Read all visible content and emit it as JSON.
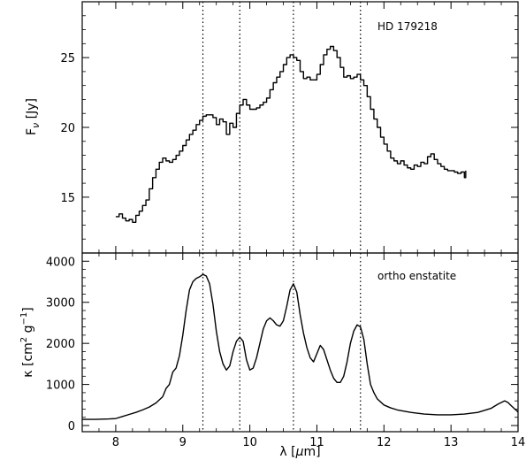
{
  "chart_data": [
    {
      "type": "line",
      "title": "",
      "annotation": "HD 179218",
      "xlabel": "",
      "ylabel": "F_ν [Jy]",
      "ylabel_parts": {
        "main": "F",
        "sub": "ν",
        "unit": " [Jy]"
      },
      "xlim": [
        7.5,
        14
      ],
      "ylim": [
        11,
        29
      ],
      "yticks": [
        15,
        20,
        25
      ],
      "xticks": [
        8,
        9,
        10,
        11,
        12,
        13,
        14
      ],
      "step_plot": true,
      "series": [
        {
          "points": [
            [
              8.0,
              13.6
            ],
            [
              8.05,
              13.8
            ],
            [
              8.1,
              13.5
            ],
            [
              8.15,
              13.3
            ],
            [
              8.2,
              13.4
            ],
            [
              8.25,
              13.2
            ],
            [
              8.3,
              13.7
            ],
            [
              8.35,
              14.0
            ],
            [
              8.4,
              14.4
            ],
            [
              8.45,
              14.8
            ],
            [
              8.5,
              15.6
            ],
            [
              8.55,
              16.4
            ],
            [
              8.6,
              17.0
            ],
            [
              8.65,
              17.5
            ],
            [
              8.7,
              17.8
            ],
            [
              8.75,
              17.6
            ],
            [
              8.8,
              17.5
            ],
            [
              8.85,
              17.7
            ],
            [
              8.9,
              18.0
            ],
            [
              8.95,
              18.3
            ],
            [
              9.0,
              18.7
            ],
            [
              9.05,
              19.1
            ],
            [
              9.1,
              19.5
            ],
            [
              9.15,
              19.8
            ],
            [
              9.2,
              20.2
            ],
            [
              9.25,
              20.5
            ],
            [
              9.3,
              20.8
            ],
            [
              9.35,
              20.9
            ],
            [
              9.4,
              20.9
            ],
            [
              9.45,
              20.7
            ],
            [
              9.5,
              20.2
            ],
            [
              9.55,
              20.6
            ],
            [
              9.6,
              20.4
            ],
            [
              9.65,
              19.5
            ],
            [
              9.7,
              20.3
            ],
            [
              9.75,
              20.0
            ],
            [
              9.8,
              21.0
            ],
            [
              9.85,
              21.6
            ],
            [
              9.9,
              22.0
            ],
            [
              9.95,
              21.6
            ],
            [
              10.0,
              21.3
            ],
            [
              10.05,
              21.3
            ],
            [
              10.1,
              21.4
            ],
            [
              10.15,
              21.6
            ],
            [
              10.2,
              21.8
            ],
            [
              10.25,
              22.1
            ],
            [
              10.3,
              22.7
            ],
            [
              10.35,
              23.2
            ],
            [
              10.4,
              23.6
            ],
            [
              10.45,
              24.0
            ],
            [
              10.5,
              24.5
            ],
            [
              10.55,
              25.0
            ],
            [
              10.6,
              25.2
            ],
            [
              10.65,
              25.0
            ],
            [
              10.7,
              24.8
            ],
            [
              10.75,
              24.0
            ],
            [
              10.8,
              23.5
            ],
            [
              10.85,
              23.6
            ],
            [
              10.9,
              23.4
            ],
            [
              10.95,
              23.4
            ],
            [
              11.0,
              23.8
            ],
            [
              11.05,
              24.5
            ],
            [
              11.1,
              25.2
            ],
            [
              11.15,
              25.6
            ],
            [
              11.2,
              25.8
            ],
            [
              11.25,
              25.5
            ],
            [
              11.3,
              25.0
            ],
            [
              11.35,
              24.3
            ],
            [
              11.4,
              23.6
            ],
            [
              11.45,
              23.7
            ],
            [
              11.5,
              23.5
            ],
            [
              11.55,
              23.6
            ],
            [
              11.6,
              23.8
            ],
            [
              11.65,
              23.4
            ],
            [
              11.7,
              23.0
            ],
            [
              11.75,
              22.2
            ],
            [
              11.8,
              21.3
            ],
            [
              11.85,
              20.6
            ],
            [
              11.9,
              20.0
            ],
            [
              11.95,
              19.3
            ],
            [
              12.0,
              18.8
            ],
            [
              12.05,
              18.3
            ],
            [
              12.1,
              17.8
            ],
            [
              12.15,
              17.6
            ],
            [
              12.2,
              17.4
            ],
            [
              12.25,
              17.6
            ],
            [
              12.3,
              17.3
            ],
            [
              12.35,
              17.1
            ],
            [
              12.4,
              17.0
            ],
            [
              12.45,
              17.3
            ],
            [
              12.5,
              17.2
            ],
            [
              12.55,
              17.5
            ],
            [
              12.6,
              17.4
            ],
            [
              12.65,
              17.9
            ],
            [
              12.7,
              18.1
            ],
            [
              12.75,
              17.7
            ],
            [
              12.8,
              17.4
            ],
            [
              12.85,
              17.2
            ],
            [
              12.9,
              17.0
            ],
            [
              12.95,
              16.9
            ],
            [
              13.0,
              16.9
            ],
            [
              13.05,
              16.8
            ],
            [
              13.1,
              16.7
            ],
            [
              13.15,
              16.8
            ],
            [
              13.2,
              16.4
            ],
            [
              13.22,
              16.9
            ]
          ]
        }
      ],
      "vlines": [
        9.3,
        9.85,
        10.65,
        11.65
      ]
    },
    {
      "type": "line",
      "title": "",
      "annotation": "ortho enstatite",
      "xlabel": "λ [μm]",
      "xlabel_parts": {
        "main": "λ [",
        "greek": "μ",
        "unit": "m]"
      },
      "ylabel": "κ [cm² g⁻¹]",
      "ylabel_parts": {
        "main": "κ [cm",
        "sup1": "2",
        "mid": " g",
        "sup2": "−1",
        "end": "]"
      },
      "xlim": [
        7.5,
        14
      ],
      "ylim": [
        -150,
        4200
      ],
      "yticks": [
        0,
        1000,
        2000,
        3000,
        4000
      ],
      "xticks": [
        8,
        9,
        10,
        11,
        12,
        13,
        14
      ],
      "xticklabels": [
        "8",
        "9",
        "10",
        "11",
        "12",
        "13",
        "14"
      ],
      "series": [
        {
          "points": [
            [
              7.5,
              150
            ],
            [
              7.7,
              150
            ],
            [
              7.9,
              160
            ],
            [
              8.0,
              170
            ],
            [
              8.1,
              220
            ],
            [
              8.2,
              270
            ],
            [
              8.3,
              320
            ],
            [
              8.4,
              380
            ],
            [
              8.5,
              450
            ],
            [
              8.6,
              550
            ],
            [
              8.7,
              700
            ],
            [
              8.75,
              900
            ],
            [
              8.8,
              1000
            ],
            [
              8.85,
              1300
            ],
            [
              8.9,
              1400
            ],
            [
              8.95,
              1700
            ],
            [
              9.0,
              2200
            ],
            [
              9.05,
              2800
            ],
            [
              9.1,
              3300
            ],
            [
              9.15,
              3500
            ],
            [
              9.2,
              3580
            ],
            [
              9.25,
              3620
            ],
            [
              9.3,
              3680
            ],
            [
              9.35,
              3640
            ],
            [
              9.4,
              3450
            ],
            [
              9.45,
              2950
            ],
            [
              9.5,
              2300
            ],
            [
              9.55,
              1800
            ],
            [
              9.6,
              1500
            ],
            [
              9.65,
              1350
            ],
            [
              9.7,
              1450
            ],
            [
              9.75,
              1800
            ],
            [
              9.8,
              2050
            ],
            [
              9.85,
              2150
            ],
            [
              9.9,
              2050
            ],
            [
              9.95,
              1600
            ],
            [
              10.0,
              1350
            ],
            [
              10.05,
              1400
            ],
            [
              10.1,
              1650
            ],
            [
              10.15,
              2000
            ],
            [
              10.2,
              2350
            ],
            [
              10.25,
              2550
            ],
            [
              10.3,
              2620
            ],
            [
              10.35,
              2550
            ],
            [
              10.4,
              2450
            ],
            [
              10.45,
              2420
            ],
            [
              10.5,
              2550
            ],
            [
              10.55,
              2900
            ],
            [
              10.6,
              3300
            ],
            [
              10.65,
              3450
            ],
            [
              10.7,
              3250
            ],
            [
              10.75,
              2700
            ],
            [
              10.8,
              2250
            ],
            [
              10.85,
              1900
            ],
            [
              10.9,
              1650
            ],
            [
              10.95,
              1550
            ],
            [
              11.0,
              1750
            ],
            [
              11.05,
              1950
            ],
            [
              11.1,
              1850
            ],
            [
              11.15,
              1600
            ],
            [
              11.2,
              1350
            ],
            [
              11.25,
              1150
            ],
            [
              11.3,
              1050
            ],
            [
              11.35,
              1050
            ],
            [
              11.4,
              1200
            ],
            [
              11.45,
              1550
            ],
            [
              11.5,
              2000
            ],
            [
              11.55,
              2300
            ],
            [
              11.6,
              2450
            ],
            [
              11.65,
              2400
            ],
            [
              11.7,
              2100
            ],
            [
              11.75,
              1500
            ],
            [
              11.8,
              1000
            ],
            [
              11.85,
              800
            ],
            [
              11.9,
              650
            ],
            [
              12.0,
              500
            ],
            [
              12.1,
              430
            ],
            [
              12.2,
              380
            ],
            [
              12.4,
              320
            ],
            [
              12.6,
              280
            ],
            [
              12.8,
              260
            ],
            [
              13.0,
              260
            ],
            [
              13.2,
              280
            ],
            [
              13.4,
              320
            ],
            [
              13.6,
              420
            ],
            [
              13.7,
              520
            ],
            [
              13.8,
              600
            ],
            [
              13.85,
              560
            ],
            [
              13.9,
              480
            ],
            [
              14.0,
              330
            ]
          ]
        }
      ],
      "vlines": [
        9.3,
        9.85,
        10.65,
        11.65
      ]
    }
  ]
}
